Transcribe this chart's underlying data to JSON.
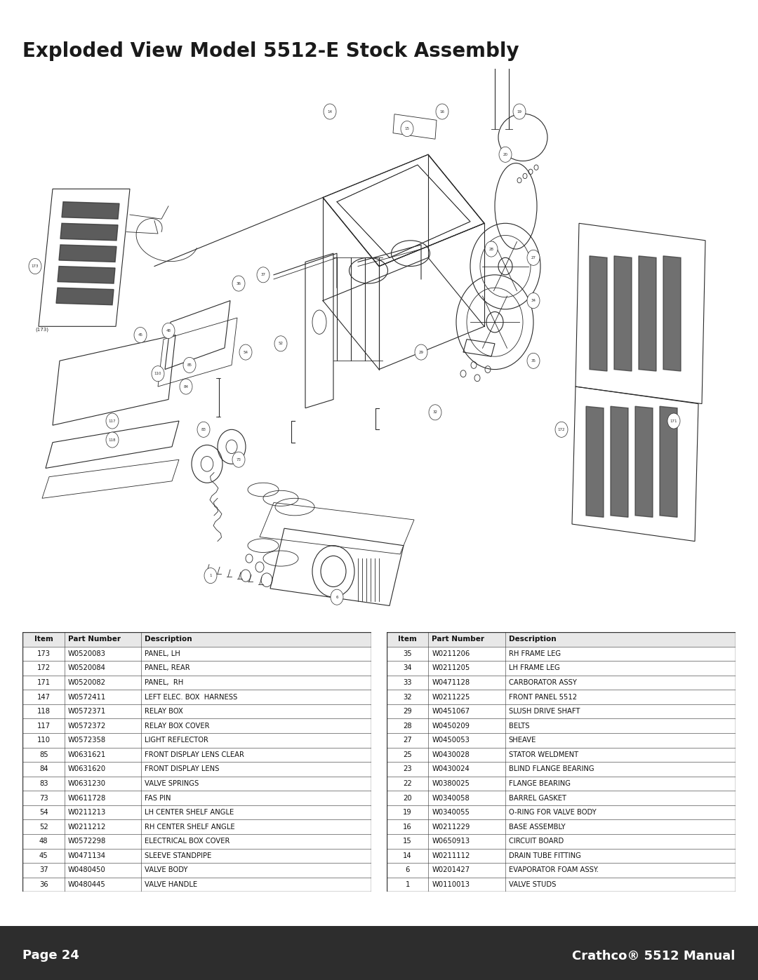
{
  "title": "Exploded View Model 5512-E Stock Assembly",
  "title_fontsize": 20,
  "title_fontweight": "bold",
  "background_color": "#ffffff",
  "page_num": "Page 24",
  "manual_name": "Crathco® 5512 Manual",
  "footer_bg": "#2d2d2d",
  "footer_text_color": "#ffffff",
  "footer_fontsize": 13,
  "table_left": [
    [
      "Item",
      "Part Number",
      "Description"
    ],
    [
      "173",
      "W0520083",
      "PANEL, LH"
    ],
    [
      "172",
      "W0520084",
      "PANEL, REAR"
    ],
    [
      "171",
      "W0520082",
      "PANEL,  RH"
    ],
    [
      "147",
      "W0572411",
      "LEFT ELEC. BOX  HARNESS"
    ],
    [
      "118",
      "W0572371",
      "RELAY BOX"
    ],
    [
      "117",
      "W0572372",
      "RELAY BOX COVER"
    ],
    [
      "110",
      "W0572358",
      "LIGHT REFLECTOR"
    ],
    [
      "85",
      "W0631621",
      "FRONT DISPLAY LENS CLEAR"
    ],
    [
      "84",
      "W0631620",
      "FRONT DISPLAY LENS"
    ],
    [
      "83",
      "W0631230",
      "VALVE SPRINGS"
    ],
    [
      "73",
      "W0611728",
      "FAS PIN"
    ],
    [
      "54",
      "W0211213",
      "LH CENTER SHELF ANGLE"
    ],
    [
      "52",
      "W0211212",
      "RH CENTER SHELF ANGLE"
    ],
    [
      "48",
      "W0572298",
      "ELECTRICAL BOX COVER"
    ],
    [
      "45",
      "W0471134",
      "SLEEVE STANDPIPE"
    ],
    [
      "37",
      "W0480450",
      "VALVE BODY"
    ],
    [
      "36",
      "W0480445",
      "VALVE HANDLE"
    ]
  ],
  "table_right": [
    [
      "Item",
      "Part Number",
      "Description"
    ],
    [
      "35",
      "W0211206",
      "RH FRAME LEG"
    ],
    [
      "34",
      "W0211205",
      "LH FRAME LEG"
    ],
    [
      "33",
      "W0471128",
      "CARBORATOR ASSY"
    ],
    [
      "32",
      "W0211225",
      "FRONT PANEL 5512"
    ],
    [
      "29",
      "W0451067",
      "SLUSH DRIVE SHAFT"
    ],
    [
      "28",
      "W0450209",
      "BELTS"
    ],
    [
      "27",
      "W0450053",
      "SHEAVE"
    ],
    [
      "25",
      "W0430028",
      "STATOR WELDMENT"
    ],
    [
      "23",
      "W0430024",
      "BLIND FLANGE BEARING"
    ],
    [
      "22",
      "W0380025",
      "FLANGE BEARING"
    ],
    [
      "20",
      "W0340058",
      "BARREL GASKET"
    ],
    [
      "19",
      "W0340055",
      "O-RING FOR VALVE BODY"
    ],
    [
      "16",
      "W0211229",
      "BASE ASSEMBLY"
    ],
    [
      "15",
      "W0650913",
      "CIRCUIT BOARD"
    ],
    [
      "14",
      "W0211112",
      "DRAIN TUBE FITTING"
    ],
    [
      "6",
      "W0201427",
      "EVAPORATOR FOAM ASSY."
    ],
    [
      "1",
      "W0110013",
      "VALVE STUDS"
    ]
  ]
}
